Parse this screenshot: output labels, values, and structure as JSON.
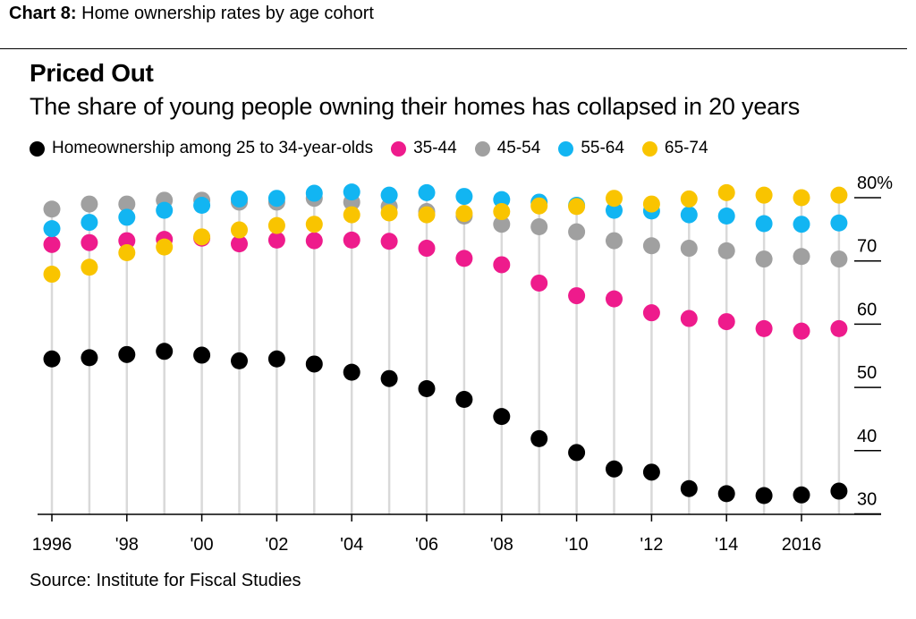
{
  "header": {
    "chart_number": "Chart 8:",
    "chart_caption": "Home ownership rates by age cohort"
  },
  "title": "Priced Out",
  "subtitle": "The share of young people owning their homes has collapsed in 20 years",
  "source": "Source: Institute for Fiscal Studies",
  "colors": {
    "25-34": "#000000",
    "35-44": "#ee1b8c",
    "45-54": "#a0a0a0",
    "55-64": "#12b5f2",
    "65-74": "#f9c400",
    "stem": "#d9d9d9"
  },
  "chart_data": {
    "type": "scatter",
    "title": "Priced Out",
    "subtitle": "The share of young people owning their homes has collapsed in 20 years",
    "xlabel": "",
    "ylabel": "",
    "ylim": [
      28,
      83
    ],
    "yticks": [
      80,
      70,
      60,
      50,
      40,
      30
    ],
    "ytick_labels": [
      "80%",
      "70",
      "60",
      "50",
      "40",
      "30"
    ],
    "x": [
      1996,
      1997,
      1998,
      1999,
      2000,
      2001,
      2002,
      2003,
      2004,
      2005,
      2006,
      2007,
      2008,
      2009,
      2010,
      2011,
      2012,
      2013,
      2014,
      2015,
      2016,
      2017
    ],
    "xtick_labels": [
      "1996",
      "'98",
      "'00",
      "'02",
      "'04",
      "'06",
      "'08",
      "'10",
      "'12",
      "'14",
      "2016"
    ],
    "xtick_values": [
      1996,
      1998,
      2000,
      2002,
      2004,
      2006,
      2008,
      2010,
      2012,
      2014,
      2016
    ],
    "legend_position": "top",
    "grid": false,
    "series": [
      {
        "name": "Homeownership among 25 to 34-year-olds",
        "key": "25-34",
        "values": [
          54.5,
          54.7,
          55.2,
          55.7,
          55.1,
          54.2,
          54.5,
          53.7,
          52.4,
          51.4,
          49.8,
          48.1,
          45.4,
          41.9,
          39.7,
          37.1,
          36.6,
          34.0,
          33.2,
          32.9,
          33.0,
          33.6
        ]
      },
      {
        "name": "35-44",
        "key": "35-44",
        "values": [
          72.6,
          72.9,
          73.2,
          73.4,
          73.6,
          72.7,
          73.3,
          73.2,
          73.3,
          73.1,
          72.0,
          70.4,
          69.4,
          66.5,
          64.5,
          64.0,
          61.8,
          60.9,
          60.4,
          59.3,
          58.9,
          59.3
        ]
      },
      {
        "name": "45-54",
        "key": "45-54",
        "values": [
          78.2,
          79.0,
          79.0,
          79.6,
          79.6,
          79.3,
          79.3,
          79.9,
          79.3,
          78.6,
          77.8,
          77.1,
          75.8,
          75.4,
          74.6,
          73.2,
          72.4,
          72.0,
          71.6,
          70.3,
          70.7,
          70.3
        ]
      },
      {
        "name": "55-64",
        "key": "55-64",
        "values": [
          75.1,
          76.1,
          76.9,
          78.0,
          78.8,
          79.8,
          79.9,
          80.7,
          80.9,
          80.4,
          80.8,
          80.2,
          79.7,
          79.3,
          78.8,
          78.0,
          77.9,
          77.3,
          77.1,
          75.9,
          75.8,
          76.0
        ]
      },
      {
        "name": "65-74",
        "key": "65-74",
        "values": [
          67.9,
          69.0,
          71.3,
          72.2,
          73.8,
          74.9,
          75.6,
          75.8,
          77.3,
          77.6,
          77.3,
          77.5,
          77.8,
          78.7,
          78.6,
          79.9,
          79.0,
          79.8,
          80.8,
          80.4,
          80.0,
          80.4
        ]
      }
    ]
  }
}
